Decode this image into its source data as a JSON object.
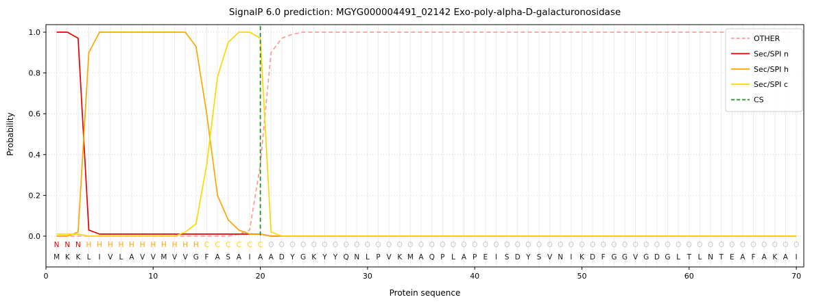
{
  "title": "SignalP 6.0 prediction: MGYG000004491_02142 Exo-poly-alpha-D-galacturonosidase",
  "xlabel": "Protein sequence",
  "ylabel": "Probability",
  "legend": [
    {
      "label": "OTHER",
      "color": "#ff9999",
      "dashed": true
    },
    {
      "label": "Sec/SPI n",
      "color": "#e50000",
      "dashed": false
    },
    {
      "label": "Sec/SPI h",
      "color": "#ffa500",
      "dashed": false
    },
    {
      "label": "Sec/SPI c",
      "color": "#ffd700",
      "dashed": false
    },
    {
      "label": "CS",
      "color": "#1e8b1e",
      "dashed": true
    }
  ],
  "chart_data": {
    "type": "line",
    "title": "SignalP 6.0 prediction: MGYG000004491_02142 Exo-poly-alpha-D-galacturonosidase",
    "xlabel": "Protein sequence",
    "ylabel": "Probability",
    "xlim": [
      0,
      70.7
    ],
    "ylim": [
      0,
      1.0
    ],
    "xticks": [
      0,
      10,
      20,
      30,
      40,
      50,
      60,
      70
    ],
    "yticks": [
      0.0,
      0.2,
      0.4,
      0.6,
      0.8,
      1.0
    ],
    "grid": "vertical-per-residue and dotted horizontal",
    "legend_position": "upper right",
    "x": [
      1,
      2,
      3,
      4,
      5,
      6,
      7,
      8,
      9,
      10,
      11,
      12,
      13,
      14,
      15,
      16,
      17,
      18,
      19,
      20,
      21,
      22,
      23,
      24,
      25,
      26,
      27,
      28,
      29,
      30,
      31,
      32,
      33,
      34,
      35,
      36,
      37,
      38,
      39,
      40,
      41,
      42,
      43,
      44,
      45,
      46,
      47,
      48,
      49,
      50,
      51,
      52,
      53,
      54,
      55,
      56,
      57,
      58,
      59,
      60,
      61,
      62,
      63,
      64,
      65,
      66,
      67,
      68,
      69,
      70
    ],
    "series": [
      {
        "name": "OTHER",
        "color": "#ff9999",
        "dash": "6,4",
        "values": [
          0,
          0,
          0,
          0,
          0,
          0,
          0,
          0,
          0,
          0,
          0,
          0,
          0,
          0,
          0,
          0,
          0,
          0.01,
          0.03,
          0.35,
          0.9,
          0.97,
          0.99,
          1,
          1,
          1,
          1,
          1,
          1,
          1,
          1,
          1,
          1,
          1,
          1,
          1,
          1,
          1,
          1,
          1,
          1,
          1,
          1,
          1,
          1,
          1,
          1,
          1,
          1,
          1,
          1,
          1,
          1,
          1,
          1,
          1,
          1,
          1,
          1,
          1,
          1,
          1,
          1,
          1,
          1,
          1,
          1,
          1,
          1,
          1
        ]
      },
      {
        "name": "Sec/SPI n",
        "color": "#e50000",
        "dash": "",
        "values": [
          1,
          1,
          0.97,
          0.03,
          0.01,
          0.01,
          0.01,
          0.01,
          0.01,
          0.01,
          0.01,
          0.01,
          0.01,
          0.01,
          0.01,
          0.01,
          0.01,
          0.01,
          0.01,
          0.01,
          0,
          0,
          0,
          0,
          0,
          0,
          0,
          0,
          0,
          0,
          0,
          0,
          0,
          0,
          0,
          0,
          0,
          0,
          0,
          0,
          0,
          0,
          0,
          0,
          0,
          0,
          0,
          0,
          0,
          0,
          0,
          0,
          0,
          0,
          0,
          0,
          0,
          0,
          0,
          0,
          0,
          0,
          0,
          0,
          0,
          0,
          0,
          0,
          0,
          0
        ]
      },
      {
        "name": "Sec/SPI h",
        "color": "#ffa500",
        "dash": "",
        "values": [
          0,
          0,
          0.02,
          0.9,
          1,
          1,
          1,
          1,
          1,
          1,
          1,
          1,
          1,
          0.93,
          0.6,
          0.2,
          0.08,
          0.03,
          0.01,
          0.01,
          0,
          0,
          0,
          0,
          0,
          0,
          0,
          0,
          0,
          0,
          0,
          0,
          0,
          0,
          0,
          0,
          0,
          0,
          0,
          0,
          0,
          0,
          0,
          0,
          0,
          0,
          0,
          0,
          0,
          0,
          0,
          0,
          0,
          0,
          0,
          0,
          0,
          0,
          0,
          0,
          0,
          0,
          0,
          0,
          0,
          0,
          0,
          0,
          0,
          0
        ]
      },
      {
        "name": "Sec/SPI c",
        "color": "#ffd700",
        "dash": "",
        "values": [
          0.01,
          0.01,
          0.01,
          0,
          0,
          0,
          0,
          0,
          0,
          0,
          0,
          0,
          0.02,
          0.06,
          0.35,
          0.78,
          0.95,
          1,
          1,
          0.97,
          0.02,
          0,
          0,
          0,
          0,
          0,
          0,
          0,
          0,
          0,
          0,
          0,
          0,
          0,
          0,
          0,
          0,
          0,
          0,
          0,
          0,
          0,
          0,
          0,
          0,
          0,
          0,
          0,
          0,
          0,
          0,
          0,
          0,
          0,
          0,
          0,
          0,
          0,
          0,
          0,
          0,
          0,
          0,
          0,
          0,
          0,
          0,
          0,
          0,
          0
        ]
      }
    ],
    "cs_line": {
      "name": "CS",
      "x": 20,
      "color": "#1e8b1e",
      "dash": "6,4"
    },
    "sequence": "MKKLIVLAVVMVVGFASAIAADYGKYYQNLPVKMAQPLAPEISDYSVNIKDFGGVGDGLTLNTEAFAKAI",
    "region_labels": "NNNHHHHHHHHHHHCCCCCCOOOOOOOOOOOOOOOOOOOOOOOOOOOOOOOOOOOOOOOOOOOOOOOOOO",
    "label_colors": {
      "N": "#e50000",
      "H": "#ffa500",
      "C": "#ffd700",
      "O": "#c9c9c9"
    },
    "sequence_color": "#1a1a1a"
  }
}
